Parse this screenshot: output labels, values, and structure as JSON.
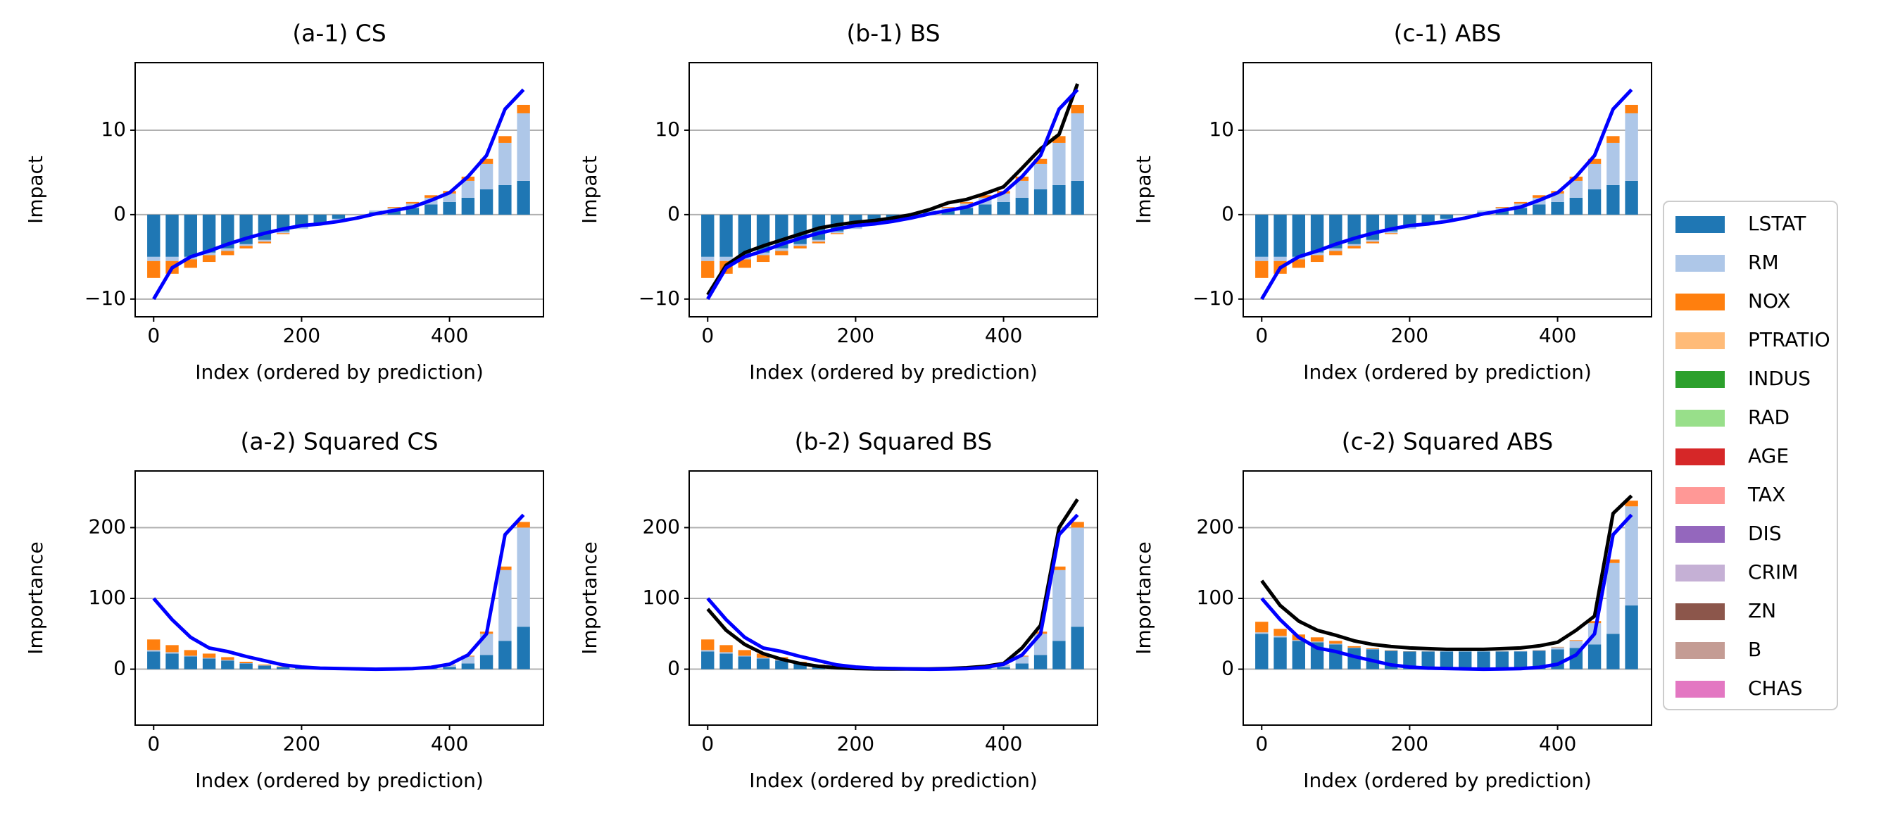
{
  "chart_data": [
    {
      "type": "bar-line",
      "title": "(a-1) CS",
      "xlabel": "Index (ordered by prediction)",
      "ylabel": "Impact",
      "xlim": [
        -25,
        527
      ],
      "ylim": [
        -12.1,
        18
      ],
      "xticks": [
        0,
        200,
        400
      ],
      "yticks": [
        {
          "value": -10,
          "label": "−10"
        },
        0,
        10
      ],
      "grid": true,
      "x": [
        0,
        25,
        50,
        75,
        100,
        125,
        150,
        175,
        200,
        225,
        250,
        275,
        300,
        325,
        350,
        375,
        400,
        425,
        450,
        475,
        500
      ],
      "bars": [
        [
          -5,
          -5,
          -5,
          -4.5,
          -4,
          -3.5,
          -3,
          -2,
          -1.5,
          -1,
          -0.5,
          0,
          0.3,
          0.5,
          0.8,
          1.2,
          1.5,
          2,
          3,
          3.5,
          4
        ],
        [
          -0.5,
          -0.5,
          -0.3,
          -0.3,
          -0.3,
          -0.2,
          -0.2,
          -0.2,
          -0.2,
          -0.2,
          -0.1,
          0,
          0.2,
          0.3,
          0.5,
          0.8,
          1,
          2,
          3,
          5,
          8
        ],
        [
          -2,
          -1.5,
          -1,
          -0.8,
          -0.5,
          -0.3,
          -0.2,
          -0.1,
          0,
          0,
          0,
          0,
          0,
          0.1,
          0.2,
          0.3,
          0.3,
          0.5,
          0.6,
          0.8,
          1
        ]
      ],
      "lines": [
        {
          "color": "#0000ff",
          "values": [
            -10,
            -6.3,
            -5,
            -4.3,
            -3.5,
            -2.8,
            -2.2,
            -1.7,
            -1.3,
            -1.1,
            -0.8,
            -0.4,
            0.1,
            0.5,
            0.9,
            1.7,
            2.6,
            4.5,
            7,
            12.5,
            14.8
          ]
        }
      ]
    },
    {
      "type": "bar-line",
      "title": "(b-1) BS",
      "xlabel": "Index (ordered by prediction)",
      "ylabel": "Impact",
      "xlim": [
        -25,
        527
      ],
      "ylim": [
        -12.1,
        18
      ],
      "xticks": [
        0,
        200,
        400
      ],
      "yticks": [
        {
          "value": -10,
          "label": "−10"
        },
        0,
        10
      ],
      "grid": true,
      "x": [
        0,
        25,
        50,
        75,
        100,
        125,
        150,
        175,
        200,
        225,
        250,
        275,
        300,
        325,
        350,
        375,
        400,
        425,
        450,
        475,
        500
      ],
      "bars": [
        [
          -5,
          -5,
          -5,
          -4.5,
          -4,
          -3.5,
          -3,
          -2,
          -1.5,
          -1,
          -0.5,
          0,
          0.3,
          0.5,
          0.8,
          1.2,
          1.5,
          2,
          3,
          3.5,
          4
        ],
        [
          -0.5,
          -0.5,
          -0.3,
          -0.3,
          -0.3,
          -0.2,
          -0.2,
          -0.2,
          -0.2,
          -0.2,
          -0.1,
          0,
          0.2,
          0.3,
          0.5,
          0.8,
          1,
          2,
          3,
          5,
          8
        ],
        [
          -2,
          -1.5,
          -1,
          -0.8,
          -0.5,
          -0.3,
          -0.2,
          -0.1,
          0,
          0,
          0,
          0,
          0,
          0.1,
          0.2,
          0.3,
          0.3,
          0.5,
          0.6,
          0.8,
          1
        ]
      ],
      "lines": [
        {
          "color": "#000000",
          "values": [
            -9.5,
            -6,
            -4.5,
            -3.7,
            -3,
            -2.3,
            -1.6,
            -1.2,
            -0.9,
            -0.7,
            -0.4,
            0,
            0.6,
            1.4,
            1.8,
            2.5,
            3.3,
            5.5,
            7.8,
            9.5,
            15.5
          ]
        },
        {
          "color": "#0000ff",
          "values": [
            -10,
            -6.3,
            -5,
            -4.3,
            -3.5,
            -2.8,
            -2.2,
            -1.7,
            -1.3,
            -1.1,
            -0.8,
            -0.4,
            0.1,
            0.5,
            0.9,
            1.7,
            2.6,
            4.5,
            7,
            12.5,
            14.8
          ]
        }
      ]
    },
    {
      "type": "bar-line",
      "title": "(c-1) ABS",
      "xlabel": "Index (ordered by prediction)",
      "ylabel": "Impact",
      "xlim": [
        -25,
        527
      ],
      "ylim": [
        -12.1,
        18
      ],
      "xticks": [
        0,
        200,
        400
      ],
      "yticks": [
        {
          "value": -10,
          "label": "−10"
        },
        0,
        10
      ],
      "grid": true,
      "x": [
        0,
        25,
        50,
        75,
        100,
        125,
        150,
        175,
        200,
        225,
        250,
        275,
        300,
        325,
        350,
        375,
        400,
        425,
        450,
        475,
        500
      ],
      "bars": [
        [
          -5,
          -5,
          -5,
          -4.5,
          -4,
          -3.5,
          -3,
          -2,
          -1.5,
          -1,
          -0.5,
          0,
          0.3,
          0.5,
          0.8,
          1.2,
          1.5,
          2,
          3,
          3.5,
          4
        ],
        [
          -0.5,
          -0.5,
          -0.3,
          -0.3,
          -0.3,
          -0.2,
          -0.2,
          -0.2,
          -0.2,
          -0.2,
          -0.1,
          0,
          0.2,
          0.3,
          0.5,
          0.8,
          1,
          2,
          3,
          5,
          8
        ],
        [
          -2,
          -1.5,
          -1,
          -0.8,
          -0.5,
          -0.3,
          -0.2,
          -0.1,
          0,
          0,
          0,
          0,
          0,
          0.1,
          0.2,
          0.3,
          0.3,
          0.5,
          0.6,
          0.8,
          1
        ]
      ],
      "lines": [
        {
          "color": "#0000ff",
          "values": [
            -10,
            -6.3,
            -5,
            -4.3,
            -3.5,
            -2.8,
            -2.2,
            -1.7,
            -1.3,
            -1.1,
            -0.8,
            -0.4,
            0.1,
            0.5,
            0.9,
            1.7,
            2.6,
            4.5,
            7,
            12.5,
            14.8
          ]
        }
      ]
    },
    {
      "type": "bar-line",
      "title": "(a-2) Squared CS",
      "xlabel": "Index (ordered by prediction)",
      "ylabel": "Importance",
      "xlim": [
        -25,
        527
      ],
      "ylim": [
        -79,
        280
      ],
      "xticks": [
        0,
        200,
        400
      ],
      "yticks": [
        0,
        100,
        200
      ],
      "grid": true,
      "x": [
        0,
        25,
        50,
        75,
        100,
        125,
        150,
        175,
        200,
        225,
        250,
        275,
        300,
        325,
        350,
        375,
        400,
        425,
        450,
        475,
        500
      ],
      "bars": [
        [
          25,
          22,
          18,
          15,
          12,
          8,
          5,
          3,
          2,
          1,
          0.5,
          0.3,
          0.2,
          0.3,
          0.5,
          1,
          3,
          8,
          20,
          40,
          60
        ],
        [
          2,
          2,
          1,
          1,
          1,
          0.5,
          0.5,
          0.3,
          0.2,
          0.1,
          0.1,
          0,
          0.1,
          0.2,
          0.5,
          1,
          3,
          10,
          30,
          100,
          140
        ],
        [
          15,
          10,
          8,
          6,
          4,
          2,
          1,
          0.5,
          0.2,
          0.1,
          0,
          0,
          0,
          0.1,
          0.2,
          0.3,
          0.5,
          1,
          3,
          5,
          8
        ]
      ],
      "lines": [
        {
          "color": "#0000ff",
          "values": [
            100,
            70,
            45,
            30,
            25,
            18,
            12,
            6,
            3,
            1.5,
            1,
            0.5,
            0,
            0.3,
            0.8,
            2.5,
            7,
            20,
            50,
            190,
            218
          ]
        }
      ]
    },
    {
      "type": "bar-line",
      "title": "(b-2) Squared BS",
      "xlabel": "Index (ordered by prediction)",
      "ylabel": "Importance",
      "xlim": [
        -25,
        527
      ],
      "ylim": [
        -79,
        280
      ],
      "xticks": [
        0,
        200,
        400
      ],
      "yticks": [
        0,
        100,
        200
      ],
      "grid": true,
      "x": [
        0,
        25,
        50,
        75,
        100,
        125,
        150,
        175,
        200,
        225,
        250,
        275,
        300,
        325,
        350,
        375,
        400,
        425,
        450,
        475,
        500
      ],
      "bars": [
        [
          25,
          22,
          18,
          15,
          12,
          8,
          5,
          3,
          2,
          1,
          0.5,
          0.3,
          0.2,
          0.3,
          0.5,
          1,
          3,
          8,
          20,
          40,
          60
        ],
        [
          2,
          2,
          1,
          1,
          1,
          0.5,
          0.5,
          0.3,
          0.2,
          0.1,
          0.1,
          0,
          0.1,
          0.2,
          0.5,
          1,
          3,
          10,
          30,
          100,
          140
        ],
        [
          15,
          10,
          8,
          6,
          4,
          2,
          1,
          0.5,
          0.2,
          0.1,
          0,
          0,
          0,
          0.1,
          0.2,
          0.3,
          0.5,
          1,
          3,
          5,
          8
        ]
      ],
      "lines": [
        {
          "color": "#000000",
          "values": [
            85,
            55,
            35,
            22,
            14,
            8,
            4,
            2,
            1,
            0.5,
            0.3,
            0.3,
            0.4,
            1,
            2,
            4,
            8,
            30,
            62,
            200,
            240
          ]
        },
        {
          "color": "#0000ff",
          "values": [
            100,
            70,
            45,
            30,
            25,
            18,
            12,
            6,
            3,
            1.5,
            1,
            0.5,
            0,
            0.3,
            0.8,
            2.5,
            7,
            20,
            50,
            190,
            218
          ]
        }
      ]
    },
    {
      "type": "bar-line",
      "title": "(c-2) Squared ABS",
      "xlabel": "Index (ordered by prediction)",
      "ylabel": "Importance",
      "xlim": [
        -25,
        527
      ],
      "ylim": [
        -79,
        280
      ],
      "xticks": [
        0,
        200,
        400
      ],
      "yticks": [
        0,
        100,
        200
      ],
      "grid": true,
      "x": [
        0,
        25,
        50,
        75,
        100,
        125,
        150,
        175,
        200,
        225,
        250,
        275,
        300,
        325,
        350,
        375,
        400,
        425,
        450,
        475,
        500
      ],
      "bars": [
        [
          50,
          45,
          40,
          38,
          35,
          30,
          28,
          26,
          25,
          25,
          25,
          25,
          25,
          25,
          25,
          26,
          28,
          30,
          35,
          50,
          90
        ],
        [
          2,
          2,
          1,
          1,
          1,
          0.5,
          0.5,
          0.3,
          0.2,
          0.1,
          0.1,
          0,
          0.1,
          0.2,
          0.5,
          1,
          3,
          10,
          30,
          100,
          140
        ],
        [
          15,
          10,
          8,
          6,
          4,
          2,
          1,
          0.5,
          0.2,
          0.1,
          0,
          0,
          0,
          0.1,
          0.2,
          0.3,
          0.5,
          1,
          3,
          5,
          8
        ]
      ],
      "lines": [
        {
          "color": "#000000",
          "values": [
            125,
            90,
            68,
            55,
            48,
            40,
            35,
            32,
            30,
            29,
            28,
            28,
            28,
            29,
            30,
            33,
            38,
            55,
            75,
            220,
            245
          ]
        },
        {
          "color": "#0000ff",
          "values": [
            100,
            70,
            45,
            30,
            25,
            18,
            12,
            6,
            3,
            1.5,
            1,
            0.5,
            0,
            0.3,
            0.8,
            2.5,
            7,
            20,
            50,
            190,
            218
          ]
        }
      ]
    }
  ],
  "legend": {
    "items": [
      {
        "name": "LSTAT",
        "color": "#1f77b4"
      },
      {
        "name": "RM",
        "color": "#aec7e8"
      },
      {
        "name": "NOX",
        "color": "#ff7f0e"
      },
      {
        "name": "PTRATIO",
        "color": "#ffbb78"
      },
      {
        "name": "INDUS",
        "color": "#2ca02c"
      },
      {
        "name": "RAD",
        "color": "#98df8a"
      },
      {
        "name": "AGE",
        "color": "#d62728"
      },
      {
        "name": "TAX",
        "color": "#ff9896"
      },
      {
        "name": "DIS",
        "color": "#9467bd"
      },
      {
        "name": "CRIM",
        "color": "#c5b0d5"
      },
      {
        "name": "ZN",
        "color": "#8c564b"
      },
      {
        "name": "B",
        "color": "#c49c94"
      },
      {
        "name": "CHAS",
        "color": "#e377c2"
      }
    ]
  }
}
